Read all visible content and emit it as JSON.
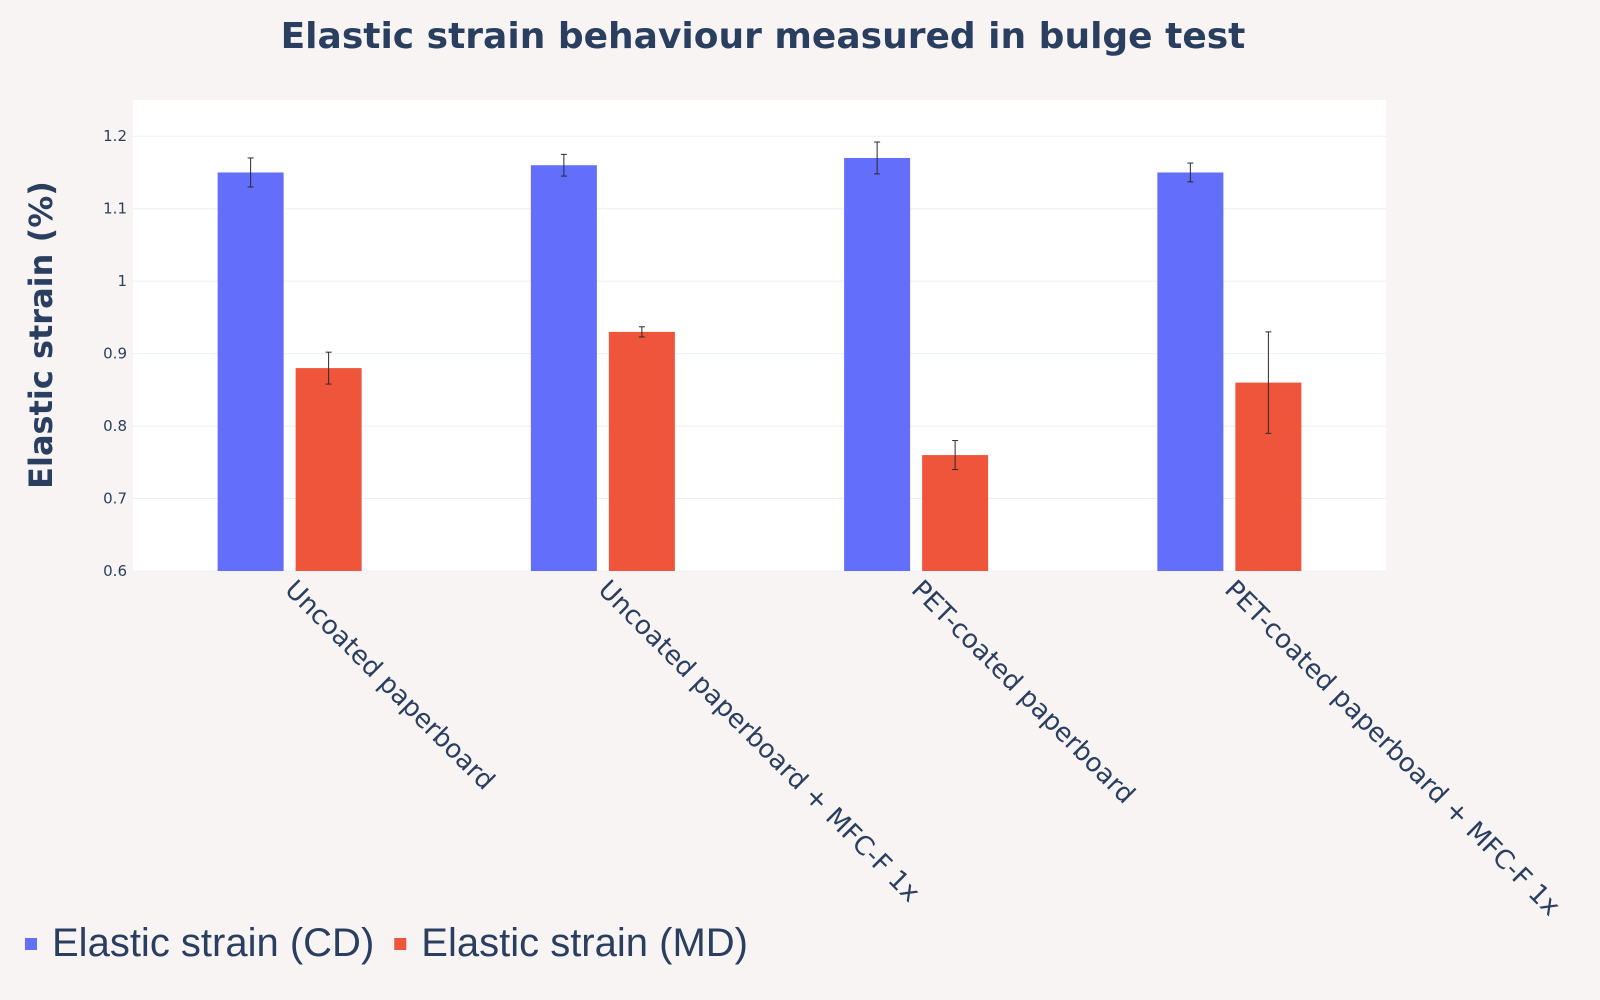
{
  "chart_data": {
    "type": "bar",
    "title": "Elastic strain behaviour measured in bulge test",
    "xlabel": "",
    "ylabel": "Elastic strain (%)",
    "categories": [
      "Uncoated paperboard",
      "Uncoated paperboard + MFC-F 1x",
      "PET-coated paperboard",
      "PET-coated paperboard + MFC-F 1x"
    ],
    "series": [
      {
        "name": "Elastic strain (CD)",
        "color": "#636efa",
        "values": [
          1.15,
          1.16,
          1.17,
          1.15
        ],
        "error": [
          0.02,
          0.015,
          0.022,
          0.013
        ]
      },
      {
        "name": "Elastic strain (MD)",
        "color": "#ef553b",
        "values": [
          0.88,
          0.93,
          0.76,
          0.86
        ],
        "error": [
          0.022,
          0.007,
          0.02,
          0.07
        ]
      }
    ],
    "ylim": [
      0.6,
      1.25
    ],
    "yticks": [
      "0.6",
      "0.7",
      "0.8",
      "0.9",
      "1",
      "1.1",
      "1.2"
    ],
    "grid": true,
    "legend_position": "bottom-left"
  }
}
